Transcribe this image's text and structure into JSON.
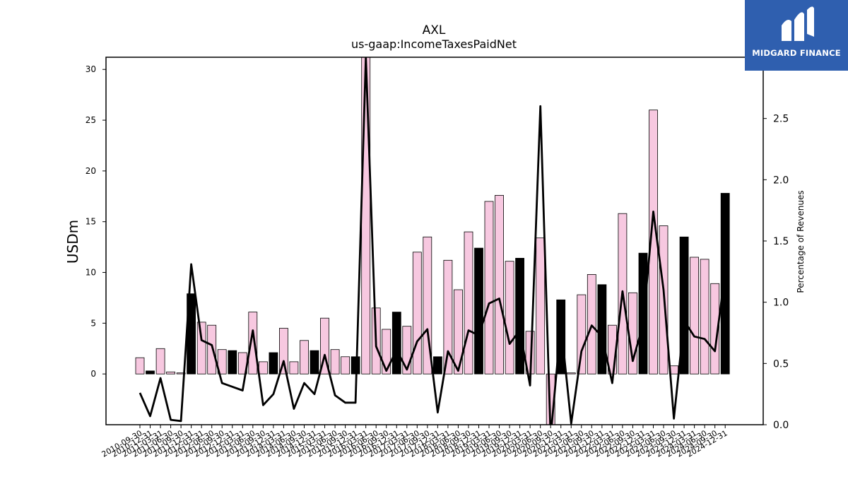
{
  "logo": {
    "text": "MIDGARD FINANCE"
  },
  "chart_data": {
    "type": "bar",
    "title": "AXL",
    "subtitle": "us-gaap:IncomeTaxesPaidNet",
    "ylabel": "USDm",
    "y2label": "Percentage of Revenues",
    "ylim": [
      -5,
      31.2
    ],
    "y2lim": [
      0,
      3.0
    ],
    "yticks": [
      0,
      5,
      10,
      15,
      20,
      25,
      30
    ],
    "y2ticks": [
      "0.0",
      "0.5",
      "1.0",
      "1.5",
      "2.0",
      "2.5",
      "3.0"
    ],
    "colors": {
      "bar_quarter": "#f7c8e0",
      "bar_annual": "#000000",
      "line": "#000000",
      "edge": "#000000"
    },
    "categories": [
      "2010-09-30",
      "2010-12-31",
      "2011-03-31",
      "2011-06-30",
      "2011-09-30",
      "2011-12-31",
      "2012-03-31",
      "2012-06-30",
      "2012-09-30",
      "2012-12-31",
      "2013-03-31",
      "2013-06-30",
      "2013-09-30",
      "2013-12-31",
      "2014-03-31",
      "2014-06-30",
      "2014-09-30",
      "2014-12-31",
      "2015-03-31",
      "2015-06-30",
      "2015-09-30",
      "2015-12-31",
      "2016-03-31",
      "2016-06-30",
      "2016-09-30",
      "2016-12-31",
      "2017-03-31",
      "2017-06-30",
      "2017-09-30",
      "2017-12-31",
      "2018-03-31",
      "2018-06-30",
      "2018-09-30",
      "2018-12-31",
      "2019-03-31",
      "2019-06-30",
      "2019-09-30",
      "2019-12-31",
      "2020-03-31",
      "2020-06-30",
      "2020-09-30",
      "2020-12-31",
      "2021-03-31",
      "2021-06-30",
      "2021-09-30",
      "2021-12-31",
      "2022-03-31",
      "2022-06-30",
      "2022-09-30",
      "2022-12-31",
      "2023-03-31",
      "2023-06-30",
      "2023-09-30",
      "2023-12-31",
      "2024-03-31",
      "2024-06-30",
      "2024-09-30",
      "2024-12-31"
    ],
    "x_tick_labels": [
      "2010-09-30",
      "2010-12-31",
      "2011-03-31",
      "2011-06-30",
      "2011-09-30",
      "2011-12-31",
      "2012-03-31",
      "2012-06-30",
      "2012-09-30",
      "2012-12-31",
      "2013-03-31",
      "2013-06-30",
      "2013-09-30",
      "2013-12-31",
      "2014-03-31",
      "2014-06-30",
      "2014-09-30",
      "2014-12-31",
      "2015-03-31",
      "2015-06-30",
      "2015-09-30",
      "2015-12-31",
      "2016-03-31",
      "2016-06-30",
      "2016-09-30",
      "2016-12-31",
      "2017-03-31",
      "2017-06-30",
      "2017-09-30",
      "2017-12-31",
      "2018-03-31",
      "2018-06-30",
      "2018-09-30",
      "2018-12-31",
      "2019-03-31",
      "2019-06-30",
      "2019-09-30",
      "2019-12-31",
      "2020-03-31",
      "2020-06-30",
      "2020-09-30",
      "2020-12-31",
      "2021-03-31",
      "2021-06-30",
      "2021-09-30",
      "2021-12-31",
      "2022-03-31",
      "2022-06-30",
      "2022-09-30",
      "2022-12-31",
      "2023-03-31",
      "2023-06-30",
      "2023-09-30",
      "2023-12-31",
      "2024-03-31",
      "2024-06-30",
      "2024-09-30",
      "2024-12-31"
    ],
    "series": [
      {
        "name": "",
        "kind": "bar",
        "values": [
          1.6,
          0.3,
          2.5,
          0.2,
          0.1,
          7.9,
          5.1,
          4.8,
          2.4,
          2.3,
          2.1,
          6.1,
          1.2,
          2.1,
          4.5,
          1.2,
          3.3,
          2.3,
          5.5,
          2.4,
          1.7,
          1.7,
          31.2,
          6.5,
          4.4,
          6.1,
          4.7,
          12.0,
          13.5,
          1.7,
          11.2,
          8.3,
          14.0,
          12.4,
          17.0,
          17.6,
          11.1,
          11.4,
          4.2,
          13.4,
          -5.0,
          7.3,
          0.1,
          7.8,
          9.8,
          8.8,
          4.8,
          15.8,
          8.0,
          11.9,
          26.0,
          14.6,
          0.8,
          13.5,
          11.5,
          11.3,
          8.9,
          17.8
        ],
        "annual": [
          0,
          1,
          0,
          0,
          0,
          1,
          0,
          0,
          0,
          1,
          0,
          0,
          0,
          1,
          0,
          0,
          0,
          1,
          0,
          0,
          0,
          1,
          0,
          0,
          0,
          1,
          0,
          0,
          0,
          1,
          0,
          0,
          0,
          1,
          0,
          0,
          0,
          1,
          0,
          0,
          0,
          1,
          0,
          0,
          0,
          1,
          0,
          0,
          0,
          1,
          0,
          0,
          0,
          1,
          0,
          0,
          0,
          1
        ]
      },
      {
        "name": "",
        "kind": "line",
        "axis": "right",
        "values": [
          0.26,
          0.07,
          0.38,
          0.04,
          0.03,
          1.31,
          0.69,
          0.65,
          0.34,
          0.31,
          0.28,
          0.77,
          0.16,
          0.25,
          0.52,
          0.13,
          0.34,
          0.25,
          0.57,
          0.24,
          0.18,
          0.18,
          3.0,
          0.64,
          0.44,
          0.61,
          0.45,
          0.68,
          0.78,
          0.1,
          0.6,
          0.44,
          0.77,
          0.73,
          0.99,
          1.03,
          0.66,
          0.77,
          0.32,
          2.6,
          -0.1,
          0.82,
          0.01,
          0.6,
          0.81,
          0.72,
          0.34,
          1.09,
          0.52,
          0.82,
          1.74,
          1.1,
          0.05,
          0.85,
          0.72,
          0.7,
          0.6,
          1.25
        ]
      }
    ],
    "grid": false,
    "legend": "none"
  }
}
